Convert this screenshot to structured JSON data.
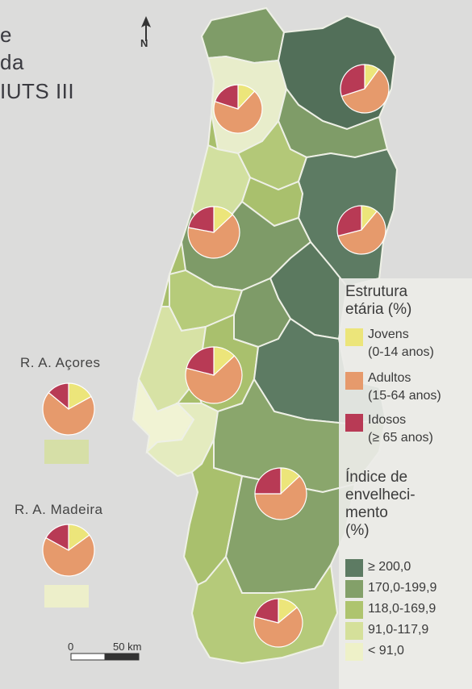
{
  "title_fragments": [
    "e",
    "da",
    "IUTS III"
  ],
  "north_label": "N",
  "labels": {
    "acores": "R. A. Açores",
    "madeira": "R. A. Madeira"
  },
  "legend": {
    "structure_title_1": "Estrutura",
    "structure_title_2": "etária (%)",
    "age_groups": [
      {
        "label_1": "Jovens",
        "label_2": "(0-14 anos)",
        "color": "#ece57a"
      },
      {
        "label_1": "Adultos",
        "label_2": "(15-64 anos)",
        "color": "#e69a6c"
      },
      {
        "label_1": "Idosos",
        "label_2": "(≥ 65 anos)",
        "color": "#b83a55"
      }
    ],
    "index_title_1": "Índice de",
    "index_title_2": "envelheci-",
    "index_title_3": "mento",
    "index_title_4": "(%)",
    "index_classes": [
      {
        "label": "≥ 200,0",
        "color": "#5d7b63"
      },
      {
        "label": "170,0-199,9",
        "color": "#83a069"
      },
      {
        "label": "118,0-169,9",
        "color": "#aec46e"
      },
      {
        "label": "91,0-117,9",
        "color": "#d5e09a"
      },
      {
        "label": "< 91,0",
        "color": "#eef1c8"
      }
    ]
  },
  "scale": {
    "zero": "0",
    "distance": "50 km"
  }
}
